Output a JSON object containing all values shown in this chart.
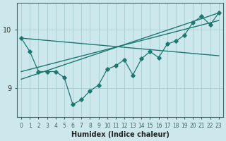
{
  "xlabel": "Humidex (Indice chaleur)",
  "bg_color": "#cce8ec",
  "line_color": "#1e7870",
  "grid_color": "#a8ccd0",
  "x_data": [
    0,
    1,
    2,
    3,
    4,
    5,
    6,
    7,
    8,
    9,
    10,
    11,
    12,
    13,
    14,
    15,
    16,
    17,
    18,
    19,
    20,
    21,
    22,
    23
  ],
  "y_data": [
    9.85,
    9.62,
    9.28,
    9.28,
    9.28,
    9.18,
    8.72,
    8.8,
    8.95,
    9.05,
    9.32,
    9.38,
    9.48,
    9.22,
    9.5,
    9.62,
    9.52,
    9.75,
    9.8,
    9.9,
    10.12,
    10.22,
    10.08,
    10.28
  ],
  "ylim": [
    8.5,
    10.45
  ],
  "yticks": [
    9,
    10
  ],
  "xlim": [
    -0.5,
    23.5
  ],
  "xticks": [
    0,
    1,
    2,
    3,
    4,
    5,
    6,
    7,
    8,
    9,
    10,
    11,
    12,
    13,
    14,
    15,
    16,
    17,
    18,
    19,
    20,
    21,
    22,
    23
  ],
  "trend1_x": [
    0,
    23
  ],
  "trend1_y": [
    9.85,
    9.55
  ],
  "trend2_x": [
    0,
    23
  ],
  "trend2_y": [
    9.15,
    10.28
  ],
  "trend3_x": [
    0,
    23
  ],
  "trend3_y": [
    9.28,
    10.15
  ]
}
